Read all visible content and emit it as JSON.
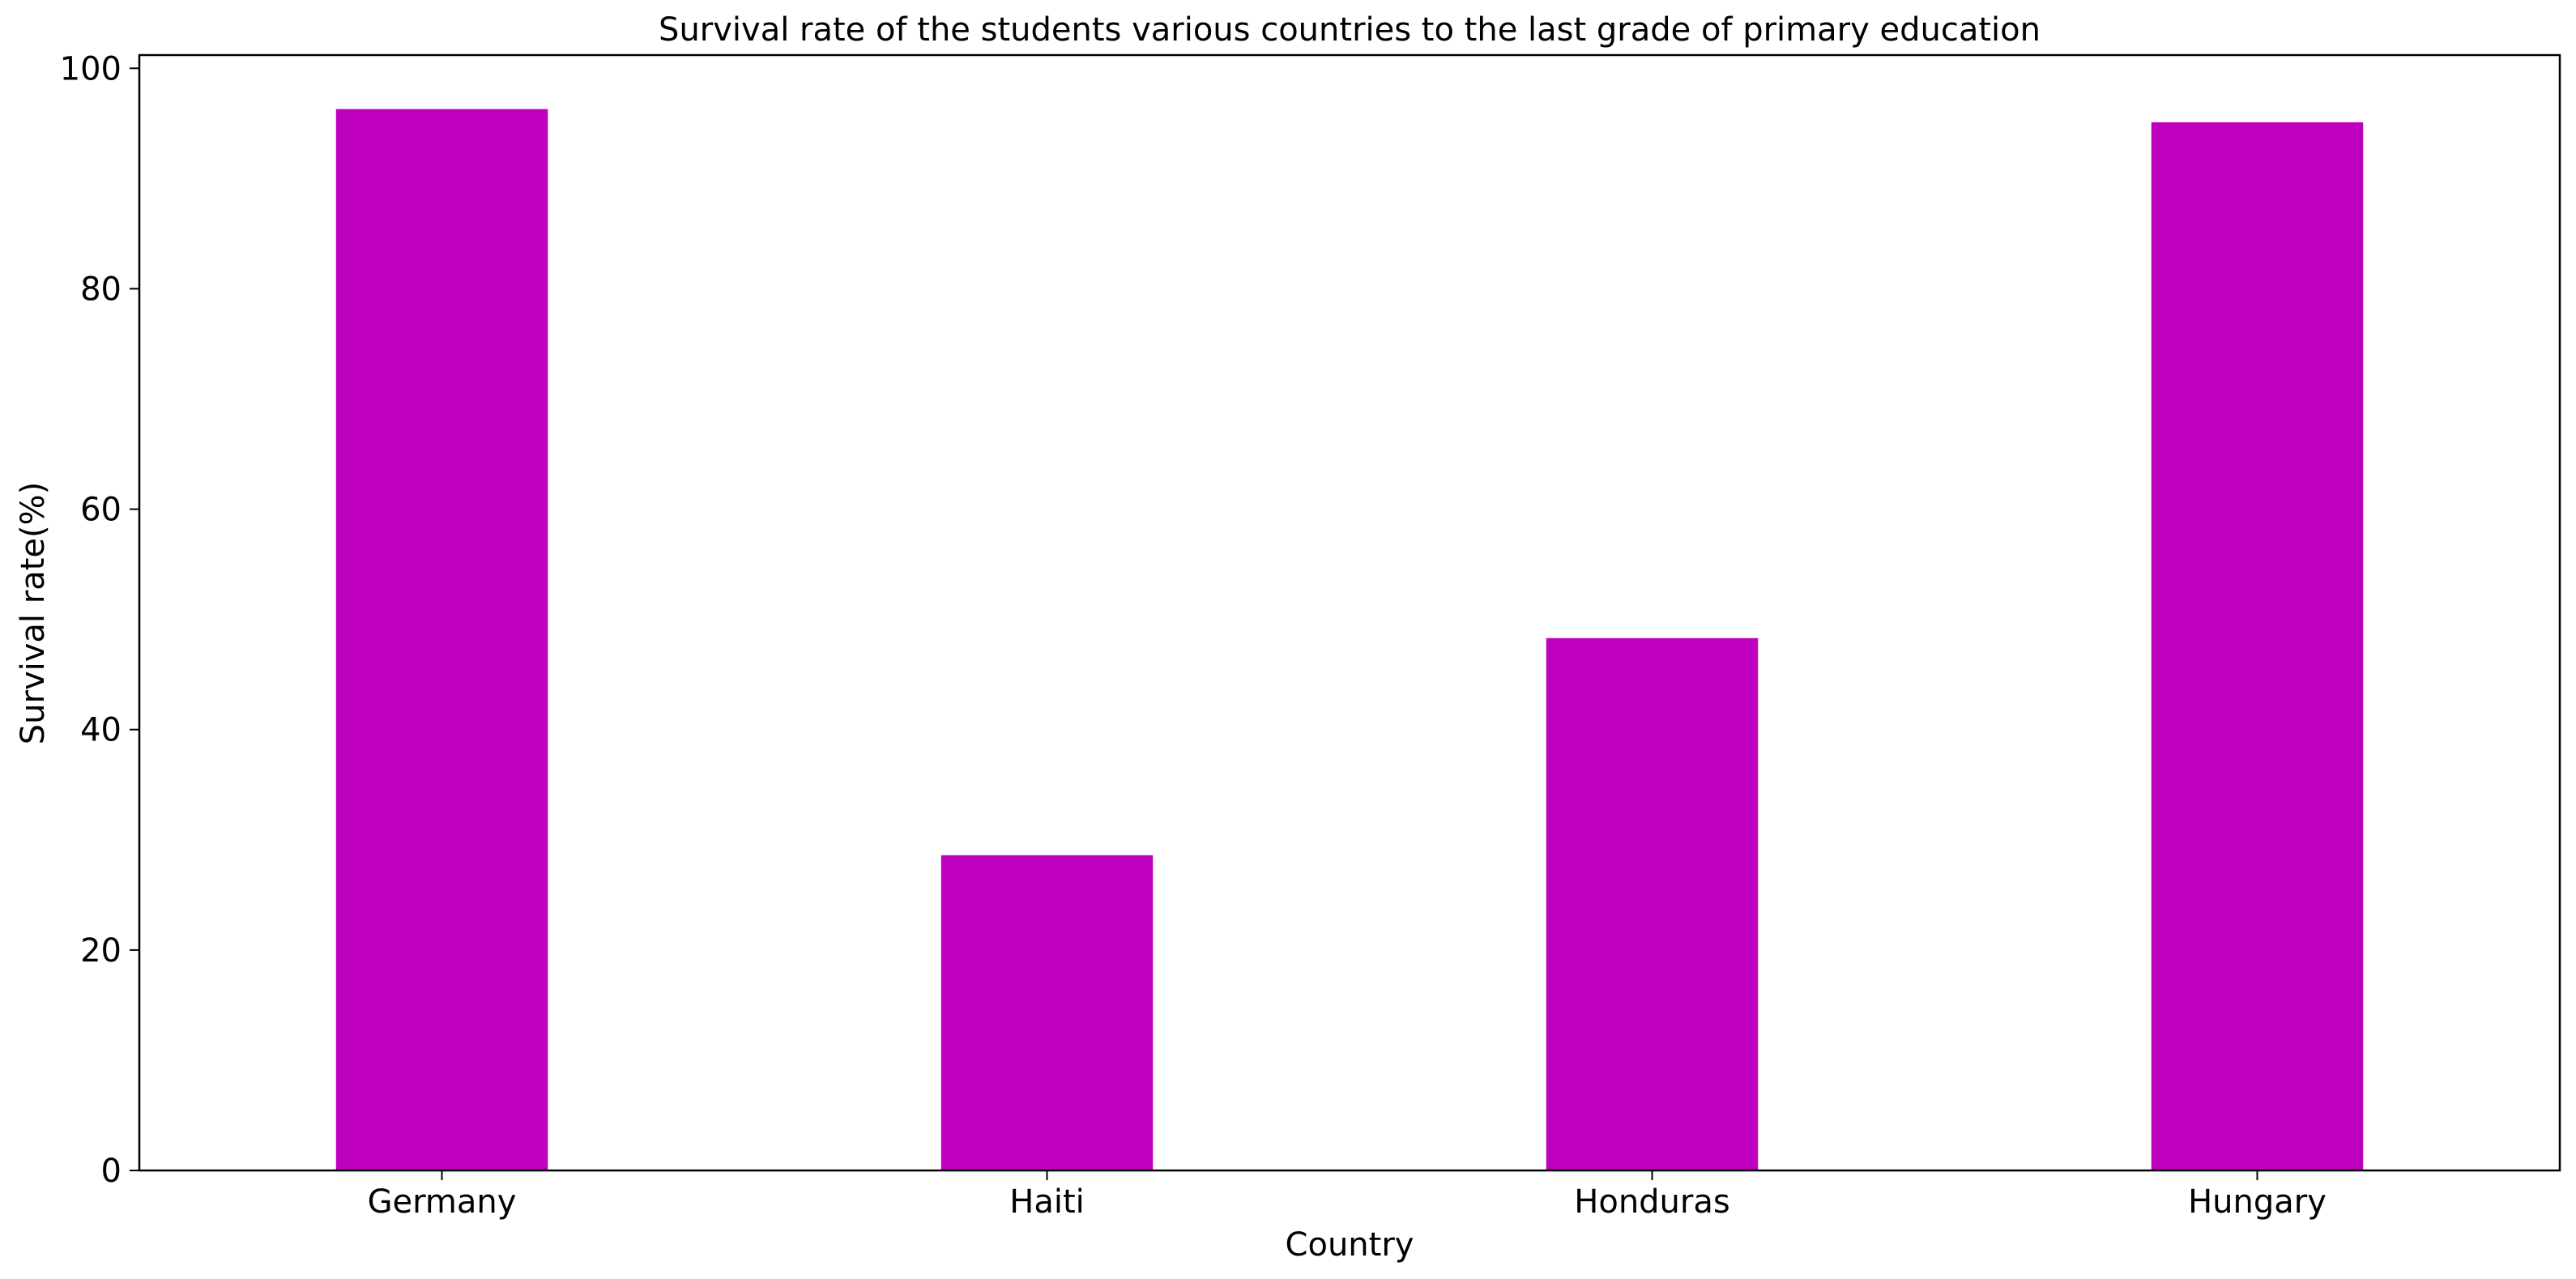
{
  "chart_data": {
    "type": "bar",
    "title": "Survival rate of the students various countries to the last grade of primary education",
    "xlabel": "Country",
    "ylabel": "Survival rate(%)",
    "categories": [
      "Germany",
      "Haiti",
      "Honduras",
      "Hungary"
    ],
    "values": [
      96.3,
      28.6,
      48.3,
      95.1
    ],
    "ylim": [
      0,
      101.2
    ],
    "yticks": [
      0,
      20,
      40,
      60,
      80,
      100
    ],
    "grid": false,
    "legend": "none",
    "bar_color": "#bf00bf"
  }
}
